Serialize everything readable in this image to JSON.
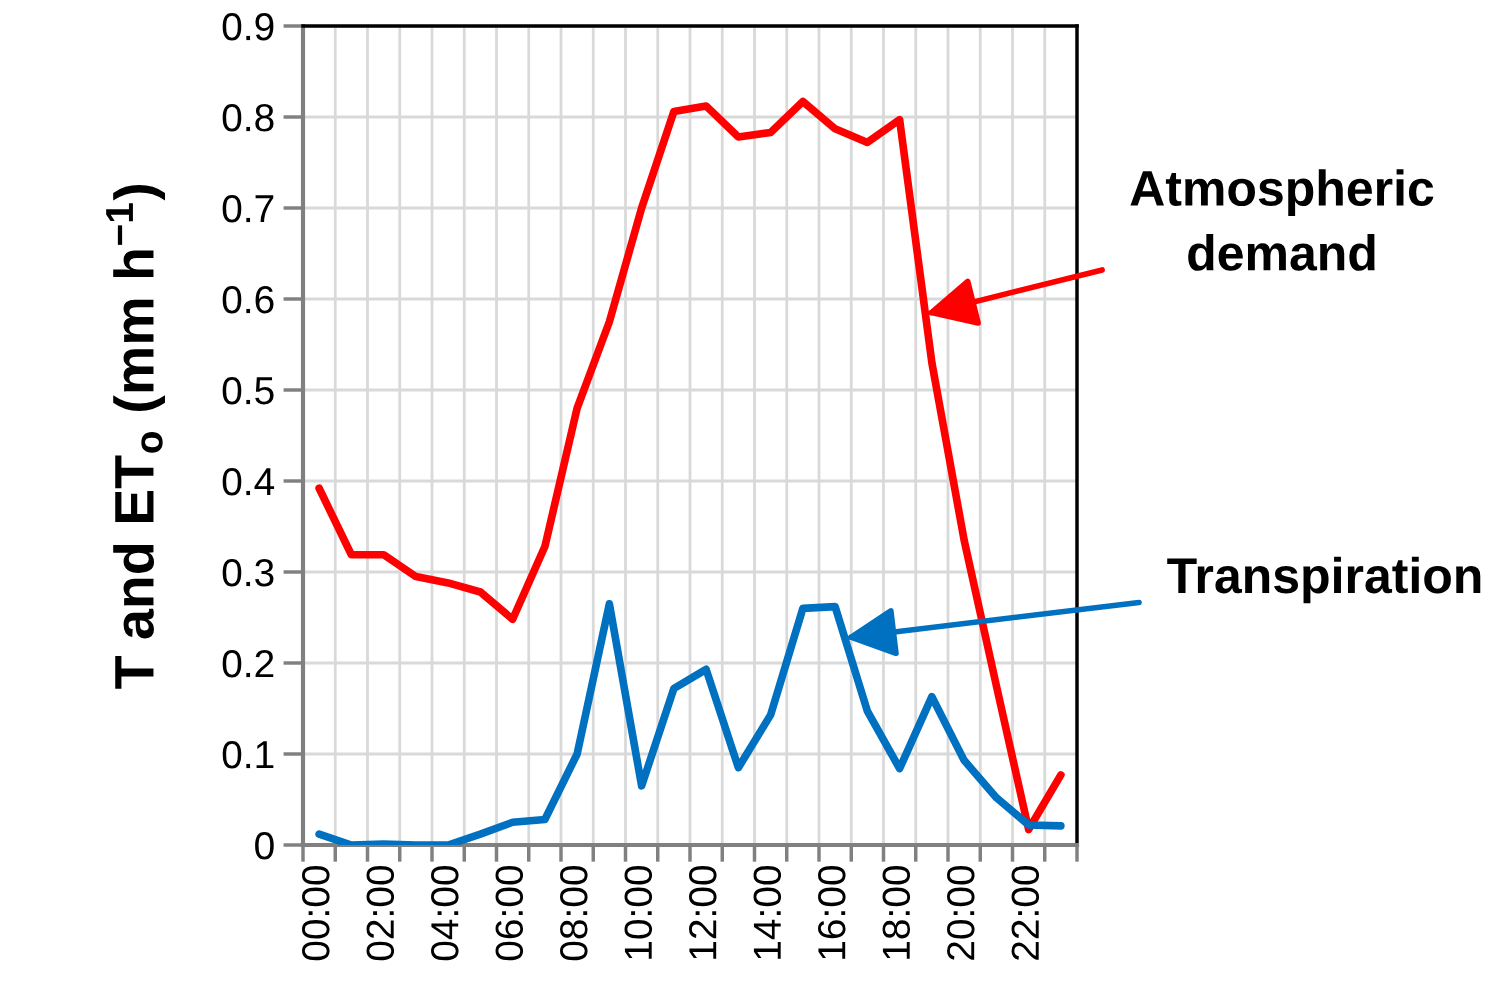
{
  "chart_data": {
    "type": "line",
    "ylabel": "T and ET$_{o}$ (mm h$^{−1}$)",
    "categories": [
      "00:00",
      null,
      "02:00",
      null,
      "04:00",
      null,
      "06:00",
      null,
      "08:00",
      null,
      "10:00",
      null,
      "12:00",
      null,
      "14:00",
      null,
      "16:00",
      null,
      "18:00",
      null,
      "20:00",
      null,
      "22:00",
      null
    ],
    "series": [
      {
        "name": "Atmospheric\ndemand",
        "color": "#ff0000",
        "values": [
          0.392,
          0.319,
          0.319,
          0.295,
          0.288,
          0.278,
          0.248,
          0.328,
          0.48,
          0.575,
          0.7,
          0.806,
          0.812,
          0.778,
          0.783,
          0.817,
          0.787,
          0.772,
          0.797,
          0.53,
          0.335,
          0.175,
          0.017,
          0.077
        ]
      },
      {
        "name": "Transpiration",
        "color": "#0070c0",
        "values": [
          0.012,
          0.0,
          0.001,
          0.0,
          0.0,
          0.012,
          0.025,
          0.028,
          0.1,
          0.265,
          0.065,
          0.172,
          0.193,
          0.085,
          0.143,
          0.26,
          0.262,
          0.147,
          0.084,
          0.163,
          0.093,
          0.052,
          0.022,
          0.021
        ]
      }
    ],
    "ylim": [
      0,
      0.9
    ],
    "yticks": [
      0,
      0.1,
      0.2,
      0.3,
      0.4,
      0.5,
      0.6,
      0.7,
      0.8,
      0.9
    ],
    "grid": true,
    "legend": false,
    "marker": "none",
    "line_style": "solid"
  }
}
